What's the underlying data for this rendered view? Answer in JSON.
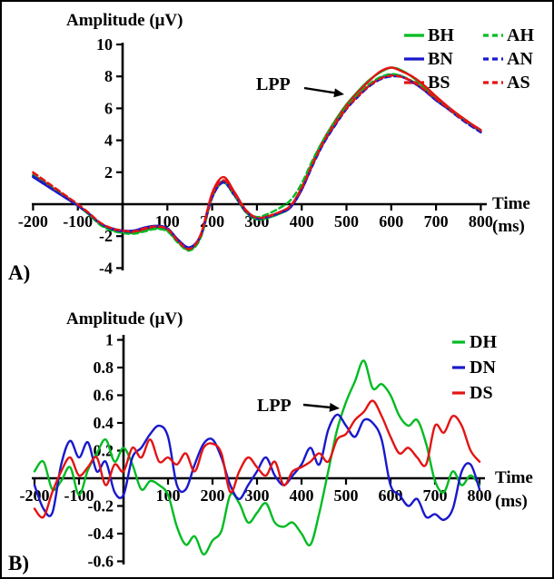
{
  "figure": {
    "background": "#ffffff",
    "border_color": "#000000"
  },
  "colors": {
    "green": "#00BB22",
    "blue": "#1818CC",
    "red": "#E31414",
    "axis": "#000000",
    "text": "#000000"
  },
  "chart_data": [
    {
      "type": "line",
      "panel_label": "A)",
      "ylabel": "Amplitude (μV)",
      "xlabel_line1": "Time",
      "xlabel_line2": "(ms)",
      "annotation": "LPP",
      "xlim": [
        -200,
        800
      ],
      "ylim": [
        -4,
        10
      ],
      "grid": false,
      "legend_position": "top-right",
      "legend_columns": 2,
      "x_ticks": [
        -200,
        -100,
        0,
        100,
        200,
        300,
        400,
        500,
        600,
        700,
        800
      ],
      "x_tick_labels": [
        "-200",
        "-100",
        "",
        "100",
        "200",
        "300",
        "400",
        "500",
        "600",
        "700",
        "800"
      ],
      "y_ticks": [
        10,
        8,
        6,
        4,
        2,
        -2,
        -4
      ],
      "y_tick_labels": [
        "10",
        "8",
        "6",
        "4",
        "2",
        "-2",
        "-4"
      ],
      "x": [
        -200,
        -175,
        -150,
        -125,
        -100,
        -75,
        -50,
        -25,
        0,
        25,
        50,
        75,
        100,
        125,
        150,
        175,
        200,
        225,
        250,
        275,
        300,
        325,
        350,
        375,
        400,
        425,
        450,
        475,
        500,
        525,
        550,
        575,
        600,
        625,
        650,
        675,
        700,
        725,
        750,
        775,
        800
      ],
      "series": [
        {
          "name": "BH",
          "color": "green",
          "dash": false,
          "values": [
            1.75,
            1.3,
            0.85,
            0.4,
            -0.1,
            -0.65,
            -1.25,
            -1.6,
            -1.75,
            -1.8,
            -1.65,
            -1.5,
            -1.65,
            -2.4,
            -2.85,
            -2.0,
            0.5,
            1.45,
            0.55,
            -0.5,
            -0.95,
            -0.85,
            -0.6,
            -0.2,
            1.0,
            2.65,
            4.1,
            5.25,
            6.25,
            7.05,
            7.75,
            8.25,
            8.55,
            8.35,
            7.9,
            7.3,
            6.65,
            6.1,
            5.55,
            5.05,
            4.6
          ]
        },
        {
          "name": "BN",
          "color": "blue",
          "dash": false,
          "values": [
            1.7,
            1.25,
            0.8,
            0.35,
            -0.1,
            -0.6,
            -1.2,
            -1.5,
            -1.65,
            -1.65,
            -1.45,
            -1.35,
            -1.5,
            -2.25,
            -2.7,
            -1.9,
            0.45,
            1.4,
            0.6,
            -0.4,
            -0.85,
            -0.75,
            -0.55,
            -0.2,
            0.9,
            2.5,
            3.9,
            5.0,
            6.0,
            6.8,
            7.4,
            7.9,
            8.1,
            8.0,
            7.6,
            7.1,
            6.5,
            6.0,
            5.5,
            5.0,
            4.55
          ]
        },
        {
          "name": "BS",
          "color": "red",
          "dash": false,
          "values": [
            1.85,
            1.4,
            0.9,
            0.45,
            -0.05,
            -0.6,
            -1.2,
            -1.55,
            -1.7,
            -1.75,
            -1.55,
            -1.4,
            -1.55,
            -2.3,
            -2.8,
            -1.85,
            0.7,
            1.7,
            0.75,
            -0.35,
            -0.85,
            -0.75,
            -0.5,
            -0.1,
            1.05,
            2.7,
            4.1,
            5.2,
            6.2,
            7.0,
            7.7,
            8.3,
            8.55,
            8.3,
            7.95,
            7.4,
            6.75,
            6.15,
            5.6,
            5.1,
            4.65
          ]
        },
        {
          "name": "AH",
          "color": "green",
          "dash": true,
          "values": [
            1.8,
            1.35,
            0.85,
            0.4,
            -0.05,
            -0.65,
            -1.3,
            -1.65,
            -1.8,
            -1.85,
            -1.7,
            -1.55,
            -1.7,
            -2.45,
            -2.9,
            -2.05,
            0.4,
            1.35,
            0.5,
            -0.45,
            -0.8,
            -0.6,
            -0.25,
            0.25,
            1.3,
            2.8,
            4.1,
            5.15,
            6.1,
            6.85,
            7.5,
            7.95,
            8.15,
            8.0,
            7.65,
            7.15,
            6.55,
            6.05,
            5.5,
            5.0,
            4.55
          ]
        },
        {
          "name": "AN",
          "color": "blue",
          "dash": true,
          "values": [
            1.75,
            1.3,
            0.8,
            0.35,
            -0.1,
            -0.6,
            -1.2,
            -1.55,
            -1.7,
            -1.7,
            -1.5,
            -1.4,
            -1.55,
            -2.3,
            -2.75,
            -1.95,
            0.4,
            1.35,
            0.55,
            -0.45,
            -0.9,
            -0.8,
            -0.55,
            -0.15,
            0.9,
            2.45,
            3.85,
            4.95,
            5.95,
            6.7,
            7.35,
            7.8,
            8.0,
            7.95,
            7.6,
            7.1,
            6.5,
            6.0,
            5.45,
            4.95,
            4.5
          ]
        },
        {
          "name": "AS",
          "color": "red",
          "dash": true,
          "values": [
            2.0,
            1.5,
            1.0,
            0.5,
            0.0,
            -0.55,
            -1.15,
            -1.5,
            -1.65,
            -1.7,
            -1.5,
            -1.4,
            -1.55,
            -2.35,
            -2.8,
            -1.9,
            0.55,
            1.5,
            0.65,
            -0.4,
            -0.85,
            -0.75,
            -0.5,
            -0.1,
            1.0,
            2.55,
            3.95,
            5.05,
            6.0,
            6.75,
            7.4,
            7.85,
            8.05,
            7.95,
            7.65,
            7.15,
            6.6,
            6.05,
            5.5,
            5.05,
            4.6
          ]
        }
      ]
    },
    {
      "type": "line",
      "panel_label": "B)",
      "ylabel": "Amplitude (μV)",
      "xlabel_line1": "Time",
      "xlabel_line2": "(ms)",
      "annotation": "LPP",
      "xlim": [
        -200,
        800
      ],
      "ylim": [
        -0.6,
        1
      ],
      "grid": false,
      "legend_position": "top-right",
      "legend_columns": 1,
      "x_ticks": [
        -200,
        -100,
        0,
        100,
        200,
        300,
        400,
        500,
        600,
        700,
        800
      ],
      "x_tick_labels": [
        "-200",
        "-100",
        "",
        "100",
        "200",
        "300",
        "400",
        "500",
        "600",
        "700",
        "800"
      ],
      "y_ticks": [
        1,
        0.8,
        0.6,
        0.4,
        0.2,
        -0.2,
        -0.4,
        -0.6
      ],
      "y_tick_labels": [
        "1",
        "0.8",
        "0.6",
        "0.4",
        "0.2",
        "-0.2",
        "-0.4",
        "-0.6"
      ],
      "x": [
        -200,
        -180,
        -160,
        -140,
        -120,
        -100,
        -80,
        -60,
        -40,
        -20,
        0,
        20,
        40,
        60,
        80,
        100,
        120,
        140,
        160,
        180,
        200,
        220,
        240,
        260,
        280,
        300,
        320,
        340,
        360,
        380,
        400,
        420,
        440,
        460,
        480,
        500,
        520,
        540,
        560,
        580,
        600,
        620,
        640,
        660,
        680,
        700,
        720,
        740,
        760,
        780,
        800
      ],
      "series": [
        {
          "name": "DH",
          "color": "green",
          "dash": false,
          "values": [
            0.05,
            0.12,
            -0.08,
            -0.02,
            0.08,
            -0.12,
            0.06,
            0.18,
            0.28,
            0.12,
            0.22,
            0.1,
            -0.08,
            -0.02,
            -0.05,
            -0.12,
            -0.35,
            -0.48,
            -0.42,
            -0.55,
            -0.45,
            -0.38,
            -0.12,
            -0.18,
            -0.32,
            -0.25,
            -0.18,
            -0.32,
            -0.35,
            -0.32,
            -0.4,
            -0.48,
            -0.25,
            0.05,
            0.35,
            0.55,
            0.7,
            0.85,
            0.65,
            0.68,
            0.6,
            0.45,
            0.38,
            0.42,
            0.25,
            -0.02,
            -0.1,
            0.05,
            -0.05,
            0.02,
            -0.05
          ]
        },
        {
          "name": "DN",
          "color": "blue",
          "dash": false,
          "values": [
            -0.05,
            -0.22,
            -0.25,
            0.1,
            0.27,
            0.15,
            0.26,
            0.05,
            0.12,
            -0.1,
            -0.12,
            0.15,
            0.22,
            0.32,
            0.38,
            0.3,
            -0.05,
            -0.08,
            0.1,
            0.25,
            0.28,
            0.15,
            -0.05,
            -0.15,
            -0.05,
            0.05,
            0.15,
            0.02,
            -0.05,
            0.02,
            0.1,
            0.22,
            0.1,
            0.35,
            0.46,
            0.38,
            0.3,
            0.42,
            0.4,
            0.28,
            -0.05,
            -0.12,
            -0.2,
            -0.15,
            -0.28,
            -0.26,
            -0.3,
            -0.22,
            0.05,
            0.1,
            -0.08
          ]
        },
        {
          "name": "DS",
          "color": "red",
          "dash": false,
          "values": [
            -0.22,
            -0.28,
            -0.1,
            0.05,
            0.15,
            0.02,
            0.08,
            0.15,
            -0.05,
            0.1,
            0.05,
            0.22,
            0.15,
            0.28,
            0.12,
            0.15,
            0.1,
            0.18,
            0.05,
            0.22,
            0.25,
            0.18,
            -0.1,
            0.05,
            0.15,
            0.08,
            0.02,
            0.12,
            -0.05,
            0.05,
            0.08,
            0.12,
            0.18,
            0.12,
            0.28,
            0.32,
            0.42,
            0.48,
            0.56,
            0.45,
            0.3,
            0.18,
            0.22,
            0.15,
            0.1,
            0.38,
            0.33,
            0.45,
            0.38,
            0.2,
            0.12
          ]
        }
      ]
    }
  ]
}
